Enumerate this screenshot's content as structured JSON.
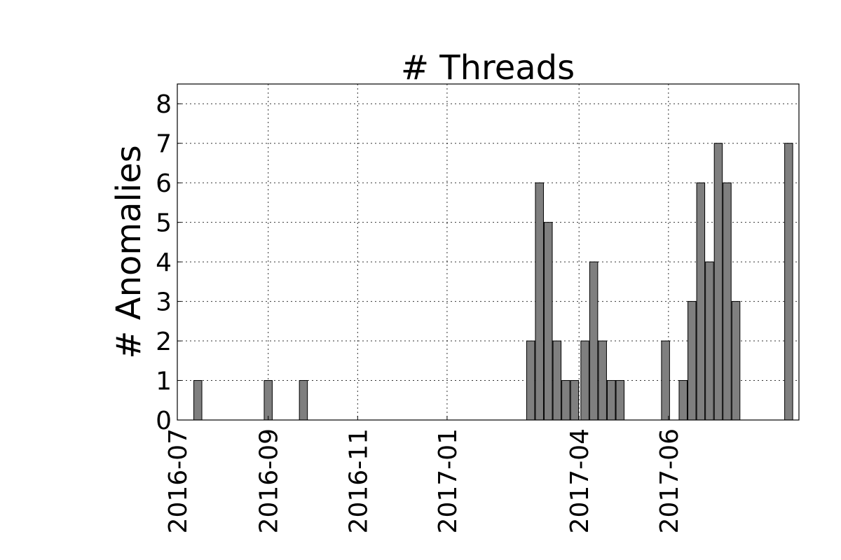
{
  "chart_data": {
    "type": "bar",
    "title": "# Threads",
    "xlabel": "",
    "ylabel": "# Anomalies",
    "x_tick_labels": [
      "2016-07",
      "2016-09",
      "2016-11",
      "2017-01",
      "2017-04",
      "2017-06"
    ],
    "x_tick_dates": [
      "2016-07-01",
      "2016-09-01",
      "2016-11-01",
      "2017-01-01",
      "2017-04-01",
      "2017-06-01"
    ],
    "x_range": [
      "2016-07-01",
      "2017-08-29"
    ],
    "y_ticks": [
      0,
      1,
      2,
      3,
      4,
      5,
      6,
      7,
      8
    ],
    "ylim": [
      0,
      8.5
    ],
    "grid": true,
    "bar_color": "#7f7f7f",
    "x": [
      "2016-07-15",
      "2016-09-01",
      "2016-09-25",
      "2017-02-27",
      "2017-03-05",
      "2017-03-11",
      "2017-03-17",
      "2017-03-23",
      "2017-03-29",
      "2017-04-05",
      "2017-04-11",
      "2017-04-17",
      "2017-04-23",
      "2017-04-29",
      "2017-05-30",
      "2017-06-11",
      "2017-06-17",
      "2017-06-23",
      "2017-06-29",
      "2017-07-05",
      "2017-07-11",
      "2017-07-17",
      "2017-08-22",
      "2017-08-28"
    ],
    "values": [
      1,
      1,
      1,
      2,
      6,
      5,
      2,
      1,
      1,
      2,
      4,
      2,
      1,
      1,
      2,
      1,
      3,
      6,
      4,
      7,
      6,
      3,
      7,
      0
    ]
  }
}
